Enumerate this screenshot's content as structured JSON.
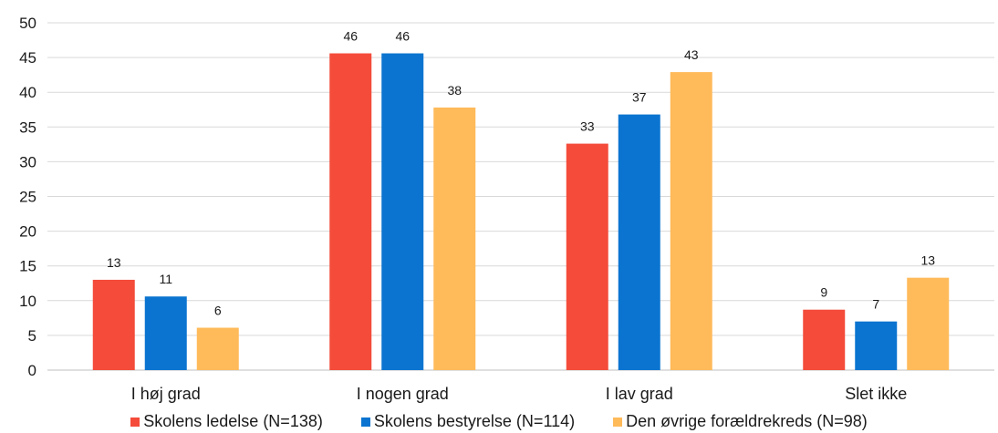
{
  "chart_data": {
    "type": "bar",
    "categories": [
      "I høj grad",
      "I nogen grad",
      "I lav grad",
      "Slet ikke"
    ],
    "series": [
      {
        "name": "Skolens ledelse (N=138)",
        "color": "#f44b3a",
        "values": [
          13,
          45.6,
          32.6,
          8.7
        ],
        "labels": [
          "13",
          "46",
          "33",
          "9"
        ]
      },
      {
        "name": "Skolens bestyrelse (N=114)",
        "color": "#0a74d0",
        "values": [
          10.6,
          45.6,
          36.8,
          7
        ],
        "labels": [
          "11",
          "46",
          "37",
          "7"
        ]
      },
      {
        "name": "Den øvrige forældrekreds (N=98)",
        "color": "#ffba5a",
        "values": [
          6.1,
          37.8,
          42.9,
          13.3
        ],
        "labels": [
          "6",
          "38",
          "43",
          "13"
        ]
      }
    ],
    "ylim": [
      0,
      50
    ],
    "yticks": [
      "0",
      "5",
      "10",
      "15",
      "20",
      "25",
      "30",
      "35",
      "40",
      "45",
      "50"
    ],
    "grid": true,
    "legend_position": "bottom"
  }
}
